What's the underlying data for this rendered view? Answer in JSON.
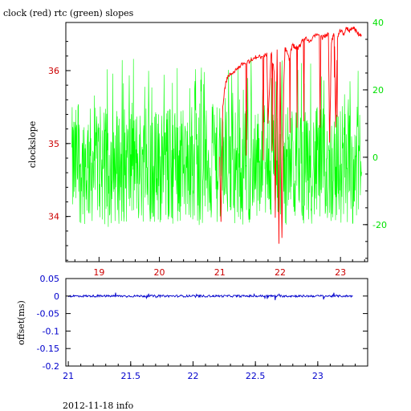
{
  "chart_data": [
    {
      "type": "line",
      "title": "clock (red) rtc (green) slopes",
      "ylabel": "clockslope",
      "xlabel": "",
      "xlim": [
        18.45,
        23.45
      ],
      "ylim": [
        33.38,
        36.66
      ],
      "y2lim": [
        -31,
        40
      ],
      "x_ticks": [
        19,
        20,
        21,
        22,
        23
      ],
      "y_ticks": [
        34,
        35,
        36
      ],
      "y2_ticks": [
        -20,
        0,
        20,
        40
      ],
      "colors": {
        "clock": "#ff0000",
        "rtc": "#00ff00",
        "axis": "#000000",
        "ticks_x": "#cc0000",
        "ticks_y": "#cc0000",
        "ticks_y2": "#00e000"
      },
      "series": [
        {
          "name": "clock",
          "axis": "left",
          "color": "#ff0000",
          "x": [
            21.0,
            21.02,
            21.05,
            21.08,
            21.12,
            21.18,
            21.25,
            21.32,
            21.4,
            21.48,
            21.55,
            21.62,
            21.7,
            21.78,
            21.8,
            21.85,
            21.9,
            21.92,
            21.95,
            21.98,
            22.0,
            22.03,
            22.06,
            22.08,
            22.1,
            22.15,
            22.2,
            22.25,
            22.3,
            22.35,
            22.42,
            22.5,
            22.6,
            22.7,
            22.75,
            22.8,
            22.82,
            22.85,
            22.9,
            22.92,
            22.95,
            23.0,
            23.05,
            23.1,
            23.15,
            23.2,
            23.25,
            23.3,
            23.35
          ],
          "y": [
            34.8,
            33.9,
            35.5,
            35.75,
            35.9,
            35.95,
            36.0,
            36.05,
            36.1,
            36.12,
            36.15,
            36.2,
            36.18,
            36.22,
            35.3,
            36.25,
            36.0,
            34.0,
            36.3,
            33.6,
            36.1,
            33.7,
            35.8,
            36.3,
            36.28,
            36.15,
            36.35,
            36.32,
            36.3,
            36.38,
            36.45,
            36.4,
            36.5,
            36.45,
            36.48,
            36.5,
            35.0,
            36.4,
            36.52,
            35.2,
            36.45,
            36.55,
            36.5,
            36.58,
            36.55,
            36.6,
            36.55,
            36.5,
            36.48
          ]
        },
        {
          "name": "rtc",
          "axis": "right",
          "color": "#00ff00",
          "x_range": [
            18.55,
            23.35
          ],
          "y_band": [
            -20,
            15
          ],
          "y_spike_range": [
            -22,
            30
          ]
        }
      ]
    },
    {
      "type": "line",
      "ylabel": "offset(ms)",
      "xlabel": "",
      "xlim": [
        20.98,
        23.4
      ],
      "ylim": [
        -0.2,
        0.05
      ],
      "x_ticks": [
        "21",
        "21.5",
        "22",
        "22.5",
        "23"
      ],
      "x_tick_values": [
        21,
        21.5,
        22,
        22.5,
        23
      ],
      "y_ticks": [
        "0.05",
        "0",
        "-0.05",
        "-0.1",
        "-0.15",
        "-0.2"
      ],
      "y_tick_values": [
        0.05,
        0,
        -0.05,
        -0.1,
        -0.15,
        -0.2
      ],
      "colors": {
        "line": "#0000cc",
        "ticks": "#0000cc"
      },
      "series": [
        {
          "name": "offset",
          "x_range": [
            21.0,
            23.28
          ],
          "y_center": 0.0,
          "noise": 0.003
        }
      ]
    }
  ],
  "footer": "2012-11-18 info"
}
